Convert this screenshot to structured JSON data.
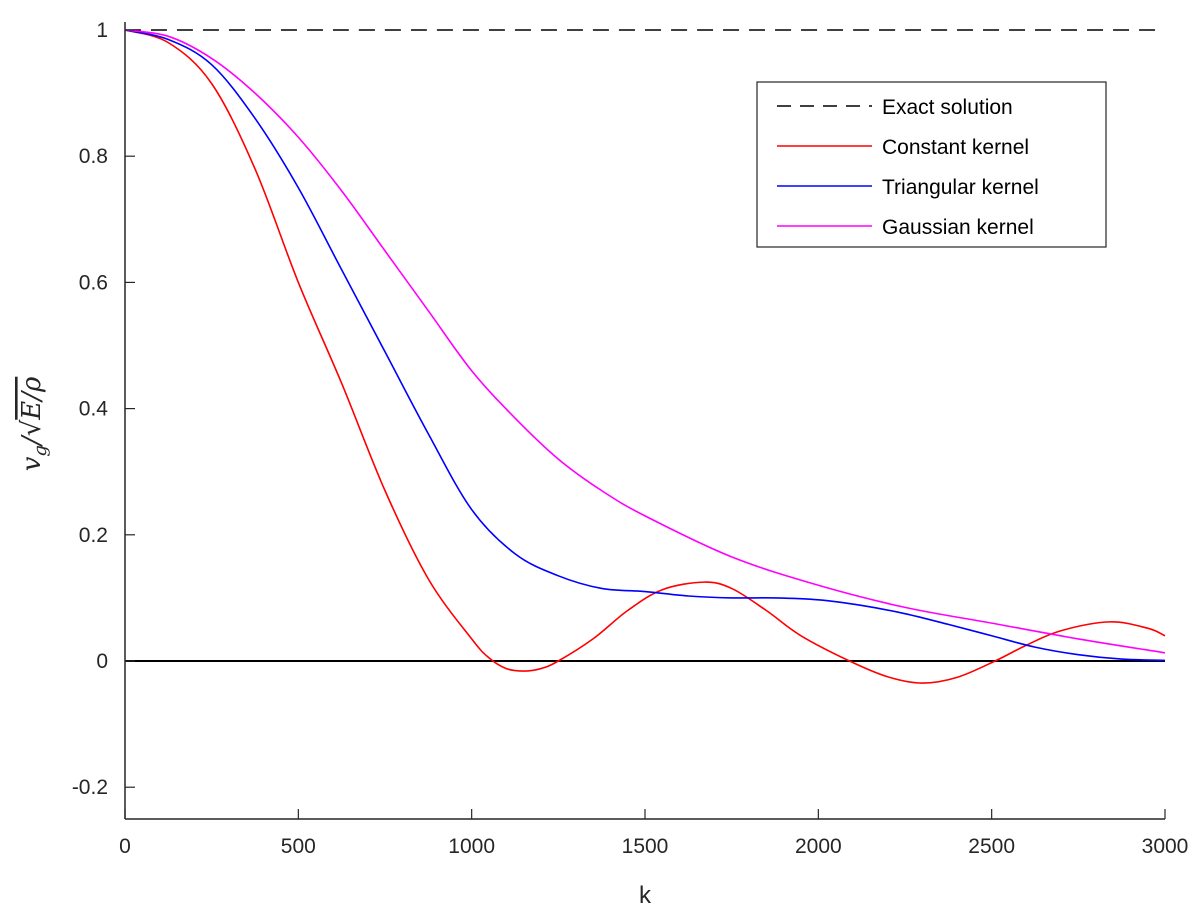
{
  "chart_data": {
    "type": "line",
    "title": "",
    "xlabel": "k",
    "ylabel": {
      "base": "v",
      "sub": "g",
      "sep": "/",
      "root": "√",
      "radicand": "E/ρ"
    },
    "xlim": [
      0,
      3000
    ],
    "ylim": [
      -0.25,
      1.0
    ],
    "xticks": [
      "0",
      "500",
      "1000",
      "1500",
      "2000",
      "2500",
      "3000"
    ],
    "yticks": [
      "-0.2",
      "0",
      "0.2",
      "0.4",
      "0.6",
      "0.8",
      "1"
    ],
    "grid": false,
    "legend_position": "top-right",
    "reference_lines": [
      {
        "y": 0,
        "color": "#000000",
        "style": "solid"
      }
    ],
    "series": [
      {
        "name": "Exact solution",
        "color": "#000000",
        "style": "dashed",
        "x": [
          0,
          3000
        ],
        "y": [
          1,
          1
        ]
      },
      {
        "name": "Constant kernel",
        "color": "#ff0000",
        "style": "solid",
        "x": [
          0,
          125,
          250,
          375,
          500,
          625,
          750,
          875,
          1000,
          1050,
          1100,
          1150,
          1200,
          1250,
          1350,
          1450,
          1550,
          1670,
          1750,
          1850,
          1950,
          2090,
          2200,
          2300,
          2400,
          2510,
          2600,
          2700,
          2840,
          2950,
          3000
        ],
        "y": [
          1,
          0.98,
          0.915,
          0.78,
          0.6,
          0.44,
          0.27,
          0.13,
          0.035,
          0.005,
          -0.012,
          -0.016,
          -0.012,
          0.0,
          0.035,
          0.08,
          0.113,
          0.125,
          0.115,
          0.08,
          0.04,
          0.0,
          -0.025,
          -0.035,
          -0.026,
          0.0,
          0.025,
          0.048,
          0.062,
          0.052,
          0.04
        ]
      },
      {
        "name": "Triangular kernel",
        "color": "#0000ff",
        "style": "solid",
        "x": [
          0,
          125,
          250,
          375,
          500,
          625,
          750,
          875,
          1000,
          1125,
          1250,
          1375,
          1500,
          1625,
          1750,
          1875,
          2000,
          2125,
          2250,
          2375,
          2500,
          2625,
          2750,
          2875,
          3000
        ],
        "y": [
          1,
          0.985,
          0.945,
          0.86,
          0.75,
          0.62,
          0.49,
          0.36,
          0.24,
          0.17,
          0.135,
          0.115,
          0.11,
          0.103,
          0.1,
          0.1,
          0.097,
          0.088,
          0.075,
          0.058,
          0.04,
          0.022,
          0.01,
          0.003,
          0.001
        ]
      },
      {
        "name": "Gaussian kernel",
        "color": "#ff00ff",
        "style": "solid",
        "x": [
          0,
          125,
          250,
          375,
          500,
          625,
          750,
          875,
          1000,
          1125,
          1250,
          1375,
          1500,
          1750,
          2000,
          2250,
          2500,
          2750,
          3000
        ],
        "y": [
          1,
          0.99,
          0.955,
          0.9,
          0.83,
          0.745,
          0.65,
          0.555,
          0.46,
          0.385,
          0.32,
          0.27,
          0.23,
          0.165,
          0.12,
          0.085,
          0.06,
          0.035,
          0.013
        ]
      }
    ]
  }
}
